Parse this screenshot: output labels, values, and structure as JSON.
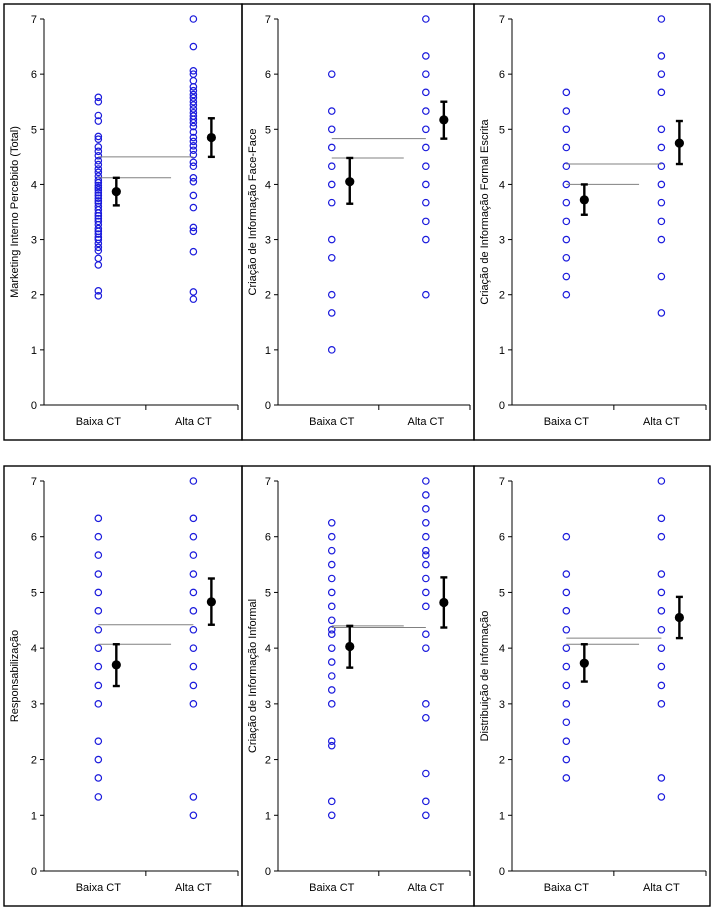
{
  "chart_data": [
    {
      "type": "scatter",
      "ylabel": "Marketing Interno Percebido (Total)",
      "categories": [
        "Baixa CT",
        "Alta CT"
      ],
      "ylim": [
        0,
        7
      ],
      "yticks": [
        0,
        1,
        2,
        3,
        4,
        5,
        6,
        7
      ],
      "series": [
        {
          "category": "Baixa CT",
          "values": [
            1.98,
            2.07,
            2.54,
            2.66,
            2.8,
            2.86,
            2.93,
            3.0,
            3.04,
            3.1,
            3.15,
            3.2,
            3.27,
            3.33,
            3.38,
            3.43,
            3.48,
            3.54,
            3.6,
            3.66,
            3.7,
            3.75,
            3.8,
            3.85,
            3.9,
            3.94,
            3.98,
            4.03,
            4.08,
            4.15,
            4.22,
            4.28,
            4.36,
            4.43,
            4.52,
            4.6,
            4.68,
            4.82,
            4.87,
            5.15,
            5.25,
            5.5,
            5.58
          ],
          "mean": 3.87,
          "lower": 3.62,
          "upper": 4.12
        },
        {
          "category": "Alta CT",
          "values": [
            1.92,
            2.05,
            2.78,
            3.15,
            3.22,
            3.58,
            3.8,
            4.05,
            4.12,
            4.33,
            4.4,
            4.54,
            4.62,
            4.7,
            4.78,
            4.85,
            4.95,
            5.05,
            5.12,
            5.18,
            5.24,
            5.3,
            5.37,
            5.44,
            5.5,
            5.57,
            5.63,
            5.7,
            5.77,
            5.88,
            6.0,
            6.06,
            6.5,
            7.0
          ],
          "mean": 4.85,
          "lower": 4.5,
          "upper": 5.2
        }
      ]
    },
    {
      "type": "scatter",
      "ylabel": "Criação de Informação Face-Face",
      "categories": [
        "Baixa CT",
        "Alta CT"
      ],
      "ylim": [
        0,
        7
      ],
      "yticks": [
        0,
        1,
        2,
        3,
        4,
        5,
        6,
        7
      ],
      "series": [
        {
          "category": "Baixa CT",
          "values": [
            1.0,
            1.67,
            2.0,
            2.67,
            3.0,
            3.67,
            4.0,
            4.33,
            4.67,
            5.0,
            5.33,
            6.0
          ],
          "mean": 4.05,
          "lower": 3.65,
          "upper": 4.48
        },
        {
          "category": "Alta CT",
          "values": [
            2.0,
            3.0,
            3.33,
            3.67,
            4.0,
            4.33,
            4.67,
            5.0,
            5.33,
            5.67,
            6.0,
            6.33,
            7.0
          ],
          "mean": 5.17,
          "lower": 4.83,
          "upper": 5.5
        }
      ]
    },
    {
      "type": "scatter",
      "ylabel": "Criação de Informação Formal Escrita",
      "categories": [
        "Baixa CT",
        "Alta CT"
      ],
      "ylim": [
        0,
        7
      ],
      "yticks": [
        0,
        1,
        2,
        3,
        4,
        5,
        6,
        7
      ],
      "series": [
        {
          "category": "Baixa CT",
          "values": [
            2.0,
            2.33,
            2.67,
            3.0,
            3.33,
            3.67,
            4.0,
            4.33,
            4.67,
            5.0,
            5.33,
            5.67
          ],
          "mean": 3.72,
          "lower": 3.45,
          "upper": 4.0
        },
        {
          "category": "Alta CT",
          "values": [
            1.67,
            2.33,
            3.0,
            3.33,
            3.67,
            4.0,
            4.33,
            4.67,
            5.0,
            5.67,
            6.0,
            6.33,
            7.0
          ],
          "mean": 4.75,
          "lower": 4.37,
          "upper": 5.15
        }
      ]
    },
    {
      "type": "scatter",
      "ylabel": "Responsabilização",
      "categories": [
        "Baixa CT",
        "Alta CT"
      ],
      "ylim": [
        0,
        7
      ],
      "yticks": [
        0,
        1,
        2,
        3,
        4,
        5,
        6,
        7
      ],
      "series": [
        {
          "category": "Baixa CT",
          "values": [
            1.33,
            1.67,
            2.0,
            2.33,
            3.0,
            3.33,
            3.67,
            4.0,
            4.33,
            4.67,
            5.0,
            5.33,
            5.67,
            6.0,
            6.33
          ],
          "mean": 3.7,
          "lower": 3.32,
          "upper": 4.07
        },
        {
          "category": "Alta CT",
          "values": [
            1.0,
            1.33,
            3.0,
            3.33,
            3.67,
            4.0,
            4.33,
            4.67,
            5.0,
            5.33,
            5.67,
            6.0,
            6.33,
            7.0
          ],
          "mean": 4.83,
          "lower": 4.42,
          "upper": 5.25
        }
      ]
    },
    {
      "type": "scatter",
      "ylabel": "Criação de Informação Informal",
      "categories": [
        "Baixa CT",
        "Alta CT"
      ],
      "ylim": [
        0,
        7
      ],
      "yticks": [
        0,
        1,
        2,
        3,
        4,
        5,
        6,
        7
      ],
      "series": [
        {
          "category": "Baixa CT",
          "values": [
            1.0,
            1.25,
            2.25,
            2.33,
            3.0,
            3.25,
            3.5,
            3.75,
            4.0,
            4.25,
            4.33,
            4.5,
            4.75,
            5.0,
            5.25,
            5.5,
            5.75,
            6.0,
            6.25
          ],
          "mean": 4.03,
          "lower": 3.65,
          "upper": 4.4
        },
        {
          "category": "Alta CT",
          "values": [
            1.0,
            1.25,
            1.75,
            2.75,
            3.0,
            4.0,
            4.25,
            4.75,
            5.0,
            5.25,
            5.5,
            5.67,
            5.75,
            6.0,
            6.25,
            6.5,
            6.75,
            7.0
          ],
          "mean": 4.82,
          "lower": 4.37,
          "upper": 5.27
        }
      ]
    },
    {
      "type": "scatter",
      "ylabel": "Distribuição de Informação",
      "categories": [
        "Baixa CT",
        "Alta CT"
      ],
      "ylim": [
        0,
        7
      ],
      "yticks": [
        0,
        1,
        2,
        3,
        4,
        5,
        6,
        7
      ],
      "series": [
        {
          "category": "Baixa CT",
          "values": [
            1.67,
            2.0,
            2.33,
            2.67,
            3.0,
            3.33,
            3.67,
            4.0,
            4.33,
            4.67,
            5.0,
            5.33,
            6.0
          ],
          "mean": 3.73,
          "lower": 3.4,
          "upper": 4.07
        },
        {
          "category": "Alta CT",
          "values": [
            1.33,
            1.67,
            3.0,
            3.33,
            3.67,
            4.0,
            4.33,
            4.67,
            5.0,
            5.33,
            6.0,
            6.33,
            7.0
          ],
          "mean": 4.55,
          "lower": 4.18,
          "upper": 4.92
        }
      ]
    }
  ],
  "colors": {
    "points": "#1a1adc",
    "mean": "#000000",
    "reference_lines": "#808080"
  }
}
